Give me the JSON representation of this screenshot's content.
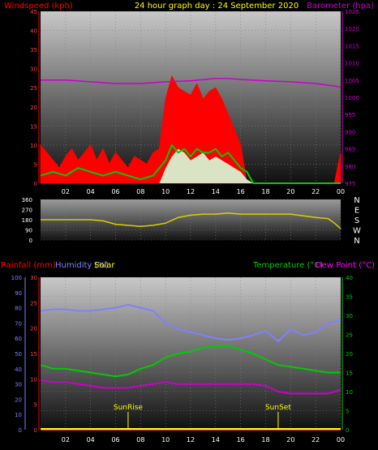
{
  "header": {
    "left": "Windspeed (kph)",
    "center": "24 hour graph day : 24 September 2020",
    "right": "Barometer (hpa)"
  },
  "mid_header": {
    "rainfall": "Rainfall (mm)",
    "humidity": "Humidity (%)",
    "solar": "Solar",
    "temperature": "Temperature (°C)",
    "dewpoint": "Dew Point (°C)"
  },
  "colors": {
    "wind": "#ff0000",
    "wind_avg": "#00cc00",
    "solar_fill": "#d8f0d0",
    "barometer": "#cc00cc",
    "direction": "#d8d000",
    "humidity": "#8080ff",
    "temperature": "#00cc00",
    "dewpoint": "#cc00cc",
    "rain": "#ff2020",
    "header_left": "#ff0000",
    "header_center": "#ffff00",
    "header_right": "#cc00cc",
    "rain_axis": "#ff0000",
    "hum_axis": "#8080ff",
    "temp_axis": "#00cc00"
  },
  "chart_data": [
    {
      "type": "line",
      "panel": "wind",
      "x_ticks": [
        "02",
        "04",
        "06",
        "08",
        "10",
        "12",
        "14",
        "16",
        "18",
        "20",
        "22",
        "00"
      ],
      "y_left": {
        "label": "Windspeed (kph)",
        "ticks": [
          0,
          5,
          10,
          15,
          20,
          25,
          30,
          35,
          40,
          45
        ],
        "ylim": [
          0,
          45
        ]
      },
      "y_right": {
        "label": "Barometer (hpa)",
        "ticks": [
          975,
          980,
          985,
          990,
          995,
          1000,
          1005,
          1010,
          1015,
          1020,
          1025
        ],
        "ylim": [
          975,
          1025
        ]
      },
      "series": [
        {
          "name": "Windspeed (kph)",
          "kind": "gust",
          "x": [
            0,
            0.5,
            1,
            1.5,
            2,
            2.5,
            3,
            3.5,
            4,
            4.5,
            5,
            5.5,
            6,
            6.5,
            7,
            7.5,
            8,
            8.5,
            9,
            9.5,
            10,
            10.5,
            11,
            11.5,
            12,
            12.5,
            13,
            13.5,
            14,
            14.5,
            15,
            15.5,
            16,
            16.5,
            17,
            17.5,
            18,
            18.5,
            19,
            19.5,
            20,
            20.5,
            21,
            21.5,
            22,
            22.5,
            23,
            23.5,
            24
          ],
          "values": [
            10,
            8,
            6,
            4,
            7,
            9,
            6,
            8,
            10,
            6,
            9,
            5,
            8,
            6,
            4,
            7,
            6,
            5,
            8,
            9,
            22,
            28,
            25,
            24,
            23,
            26,
            22,
            24,
            25,
            22,
            18,
            14,
            10,
            0,
            0,
            0,
            0,
            0,
            0,
            0,
            0,
            0,
            0,
            0,
            0,
            0,
            0,
            0,
            8
          ]
        },
        {
          "name": "Average",
          "kind": "avg",
          "x": [
            0,
            1,
            2,
            3,
            4,
            5,
            6,
            7,
            8,
            9,
            10,
            10.5,
            11,
            11.5,
            12,
            12.5,
            13,
            13.5,
            14,
            14.5,
            15,
            15.5,
            16,
            16.5,
            17,
            18,
            20,
            22,
            24
          ],
          "values": [
            2,
            3,
            2,
            4,
            3,
            2,
            3,
            2,
            1,
            2,
            6,
            10,
            8,
            9,
            7,
            9,
            8,
            8,
            9,
            7,
            8,
            6,
            4,
            3,
            0,
            0,
            0,
            0,
            0
          ]
        },
        {
          "name": "Solar",
          "kind": "solar",
          "x": [
            9.5,
            10,
            10.5,
            11,
            11.5,
            12,
            12.5,
            13,
            13.5,
            14,
            14.5,
            15,
            15.5,
            16,
            16.5,
            17
          ],
          "values": [
            0,
            4,
            7,
            9,
            8,
            6,
            7,
            8,
            6,
            7,
            6,
            5,
            4,
            3,
            1,
            0
          ]
        },
        {
          "name": "Barometer (hpa)",
          "kind": "baro",
          "x": [
            0,
            2,
            4,
            6,
            8,
            10,
            12,
            14,
            15,
            16,
            18,
            20,
            22,
            24
          ],
          "values": [
            1005,
            1005,
            1004.5,
            1004,
            1004,
            1004.5,
            1004.8,
            1005.5,
            1005.5,
            1005.2,
            1004.8,
            1004.5,
            1004,
            1003
          ]
        }
      ]
    },
    {
      "type": "line",
      "panel": "direction",
      "y_left": {
        "ticks": [
          0,
          90,
          180,
          270,
          360
        ],
        "ylim": [
          0,
          360
        ]
      },
      "y_right": {
        "ticks": [
          "N",
          "W",
          "S",
          "E",
          "N"
        ]
      },
      "series": [
        {
          "name": "Wind direction",
          "x": [
            0,
            2,
            4,
            5,
            6,
            7,
            8,
            9,
            10,
            11,
            12,
            13,
            14,
            15,
            16,
            17,
            18,
            20,
            22,
            23,
            23.5,
            24
          ],
          "values": [
            180,
            180,
            180,
            170,
            140,
            130,
            120,
            130,
            150,
            200,
            220,
            230,
            230,
            240,
            230,
            230,
            230,
            230,
            200,
            190,
            150,
            100
          ]
        }
      ]
    },
    {
      "type": "line",
      "panel": "temperature",
      "x_ticks": [
        "02",
        "04",
        "06",
        "08",
        "10",
        "12",
        "14",
        "16",
        "18",
        "20",
        "22",
        "00"
      ],
      "y_left_outer": {
        "label": "Humidity (%)",
        "ticks": [
          0,
          10,
          20,
          30,
          40,
          50,
          60,
          70,
          80,
          90,
          100
        ],
        "ylim": [
          0,
          100
        ]
      },
      "y_left_inner": {
        "label": "Rainfall (mm)",
        "ticks": [
          0,
          5,
          10,
          15,
          20,
          25,
          30
        ],
        "ylim": [
          0,
          30
        ]
      },
      "y_right": {
        "label": "Temperature (°C)",
        "ticks": [
          0,
          5,
          10,
          15,
          20,
          25,
          30,
          35,
          40
        ],
        "ylim": [
          0,
          40
        ]
      },
      "annotations": [
        {
          "label": "SunRise",
          "x": 7
        },
        {
          "label": "SunSet",
          "x": 19
        }
      ],
      "series": [
        {
          "name": "Humidity (%)",
          "x": [
            0,
            1,
            2,
            3,
            4,
            5,
            6,
            7,
            8,
            9,
            10,
            11,
            12,
            13,
            14,
            15,
            16,
            17,
            18,
            19,
            20,
            21,
            22,
            23,
            24
          ],
          "values": [
            78,
            79,
            79,
            78,
            78,
            79,
            80,
            82,
            80,
            78,
            70,
            66,
            64,
            62,
            60,
            59,
            60,
            62,
            65,
            58,
            66,
            62,
            64,
            70,
            72
          ]
        },
        {
          "name": "Temperature (°C)",
          "x": [
            0,
            1,
            2,
            3,
            4,
            5,
            6,
            7,
            8,
            9,
            10,
            11,
            12,
            13,
            14,
            15,
            16,
            17,
            18,
            19,
            20,
            21,
            22,
            23,
            24
          ],
          "values": [
            17,
            16,
            16,
            15.5,
            15,
            14.5,
            14,
            14.5,
            16,
            17,
            19,
            20,
            20.5,
            21.5,
            22,
            22,
            21,
            20,
            18.5,
            17,
            16.5,
            16,
            15.5,
            15,
            15
          ]
        },
        {
          "name": "Dew Point (°C)",
          "x": [
            0,
            1,
            2,
            3,
            4,
            5,
            6,
            7,
            8,
            9,
            10,
            11,
            12,
            13,
            14,
            15,
            16,
            17,
            18,
            19,
            20,
            21,
            22,
            23,
            24
          ],
          "values": [
            13,
            12.5,
            12.5,
            12,
            11.5,
            11,
            11,
            11,
            11.5,
            12,
            12.5,
            12,
            12,
            12,
            12,
            12,
            12,
            12,
            11.5,
            10,
            9.5,
            9.5,
            9.5,
            9.5,
            10.5
          ]
        },
        {
          "name": "Rainfall (mm)",
          "x": [
            0,
            24
          ],
          "values": [
            0,
            0
          ]
        }
      ]
    }
  ]
}
